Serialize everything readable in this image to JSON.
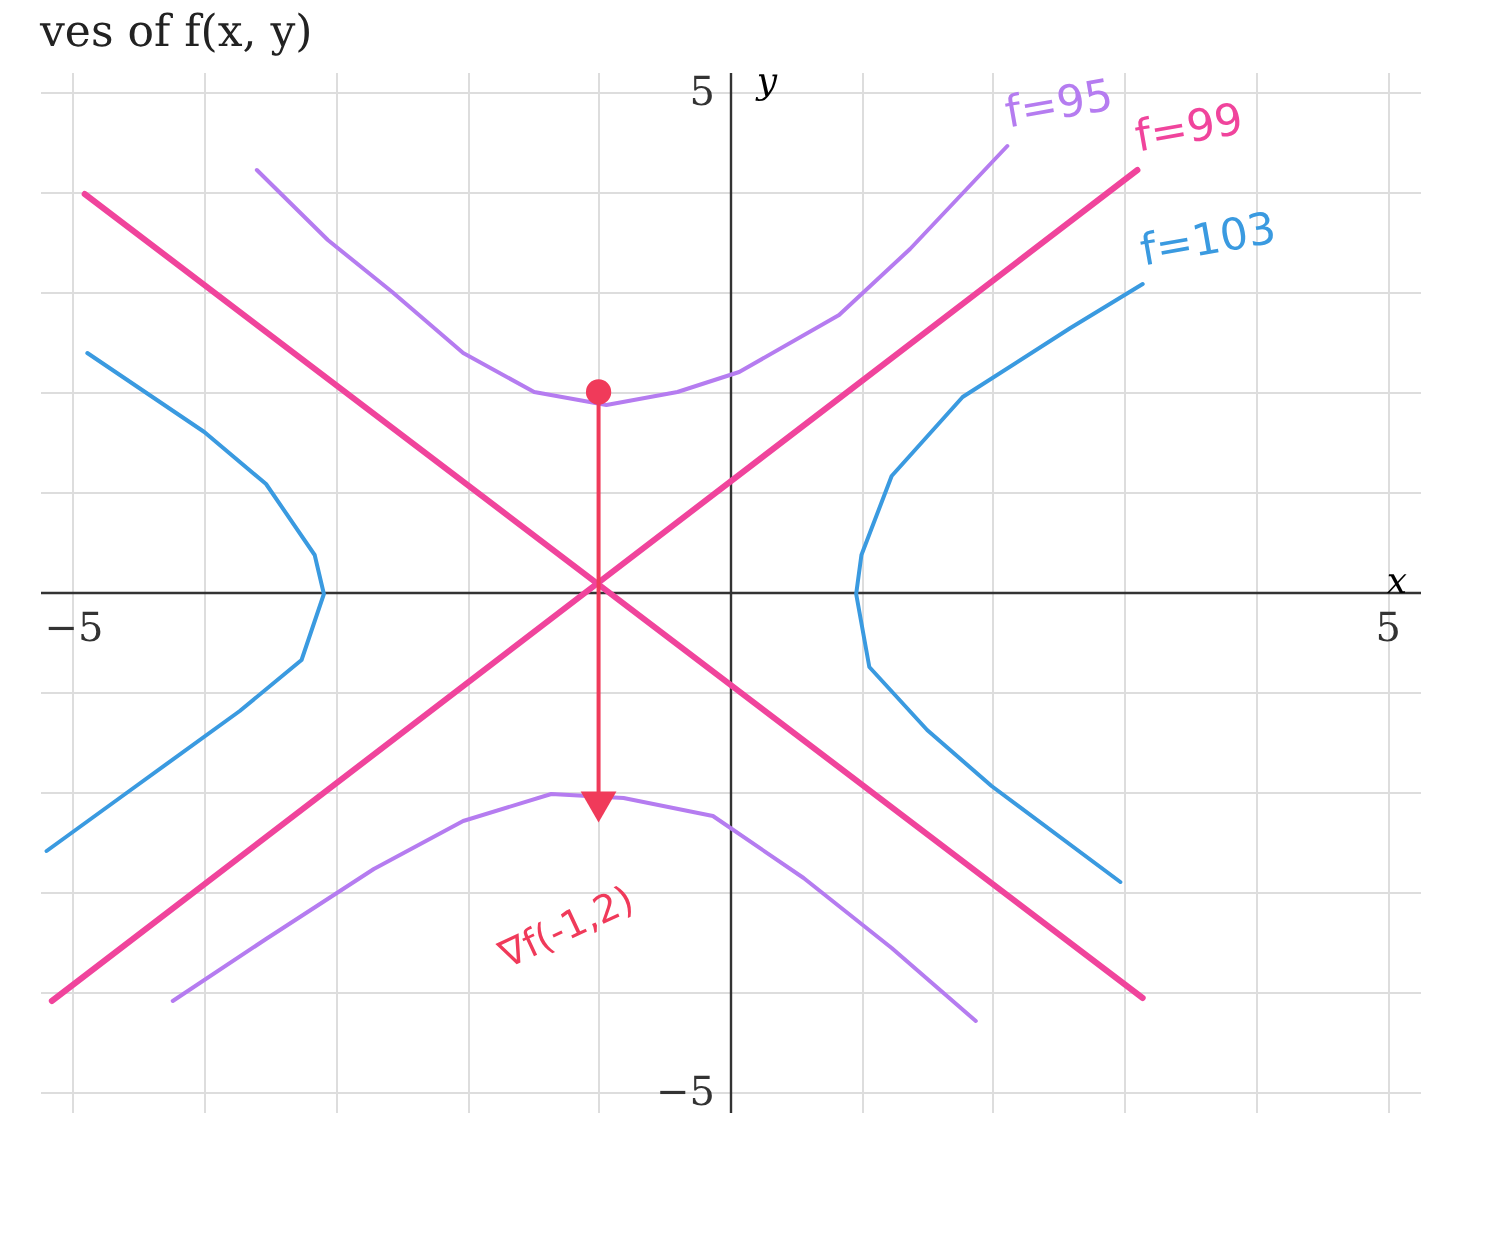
{
  "chart_data": {
    "type": "line",
    "title": "ves of f(x, y)",
    "xlabel": "x",
    "ylabel": "y",
    "xlim": [
      -5.25,
      5.25
    ],
    "ylim": [
      -5.2,
      5.2
    ],
    "xticks": [
      -5,
      {
        "value": -4,
        "label": null
      },
      {
        "value": -3,
        "label": null
      },
      {
        "value": -2,
        "label": null
      },
      {
        "value": -1,
        "label": null
      },
      {
        "value": 0,
        "label": null
      },
      {
        "value": 1,
        "label": null
      },
      {
        "value": 2,
        "label": null
      },
      {
        "value": 3,
        "label": null
      },
      {
        "value": 4,
        "label": null
      },
      5
    ],
    "yticks": [
      -5,
      {
        "value": -4,
        "label": null
      },
      {
        "value": -3,
        "label": null
      },
      {
        "value": -2,
        "label": null
      },
      {
        "value": -1,
        "label": null
      },
      {
        "value": 0,
        "label": null
      },
      {
        "value": 1,
        "label": null
      },
      {
        "value": 2,
        "label": null
      },
      {
        "value": 3,
        "label": null
      },
      {
        "value": 4,
        "label": null
      },
      5
    ],
    "grid": true,
    "marker": "none",
    "line_style": "solid",
    "series": [
      {
        "name": "f=95",
        "color": "#b57cf0",
        "x": [
          -3.6,
          -3.06,
          -2.57,
          -2.03,
          -1.49,
          -0.94,
          -0.4,
          0.07,
          0.83,
          1.37,
          2.11
        ],
        "values": [
          4.22,
          3.52,
          3.0,
          2.39,
          2.0,
          1.87,
          2.0,
          2.2,
          2.77,
          3.43,
          4.46
        ]
      },
      {
        "color": "#b57cf0",
        "x": [
          -4.24,
          -3.53,
          -2.71,
          -2.03,
          -1.36,
          -0.81,
          -0.13,
          0.56,
          1.23,
          1.87
        ],
        "values": [
          -4.09,
          -3.47,
          -2.77,
          -2.29,
          -2.02,
          -2.06,
          -2.24,
          -2.86,
          -3.56,
          -4.29
        ]
      },
      {
        "name": "f=99",
        "color": "#f0449c",
        "x": [
          -5.16,
          3.1
        ],
        "values": [
          -4.09,
          4.22
        ]
      },
      {
        "color": "#f0449c",
        "x": [
          -4.91,
          3.14
        ],
        "values": [
          3.98,
          -4.06
        ]
      },
      {
        "name": "f=103",
        "color": "#3a9ae0",
        "x": [
          3.14,
          2.59,
          1.77,
          1.23,
          1.0,
          0.96,
          1.06,
          1.5,
          1.99,
          2.97
        ],
        "values": [
          3.08,
          2.64,
          1.95,
          1.16,
          0.37,
          -0.02,
          -0.75,
          -1.38,
          -1.94,
          -2.9
        ]
      },
      {
        "color": "#3a9ae0",
        "x": [
          -4.89,
          -4.0,
          -3.53,
          -3.16,
          -3.09,
          -3.26,
          -3.73,
          -4.56,
          -5.2
        ],
        "values": [
          2.39,
          1.6,
          1.08,
          0.37,
          -0.02,
          -0.68,
          -1.19,
          -1.98,
          -2.59
        ]
      },
      {
        "color": "#f03a5a",
        "x": [
          -1,
          -1
        ],
        "values": [
          2,
          -2.15
        ]
      },
      {
        "type": "scatter",
        "marker": "circle",
        "color": "#f03a5a",
        "x": [
          -1
        ],
        "values": [
          2
        ]
      },
      {
        "type": "scatter",
        "marker": "triangle",
        "color": "#f03a5a",
        "x": [
          -1
        ],
        "values": [
          -2.15
        ]
      }
    ],
    "annotations": [
      {
        "text": "∇f(-1,2)",
        "x": -1,
        "y": -2.15
      }
    ]
  }
}
